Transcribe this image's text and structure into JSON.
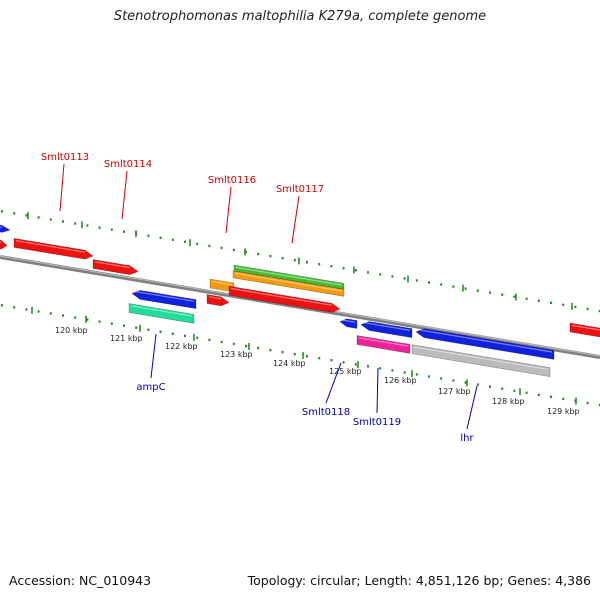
{
  "title": "Stenotrophomonas maltophilia K279a, complete genome",
  "footer": {
    "accession": "Accession: NC_010943",
    "summary": "Topology: circular; Length: 4,851,126 bp; Genes: 4,386"
  },
  "colors": {
    "backbone": "#808080",
    "tick": "#2a8a2a",
    "forward_label": "#cc0000",
    "reverse_label": "#0000aa",
    "red": "#ee1111",
    "orange": "#f49a10",
    "green": "#44bb33",
    "blue": "#1122dd",
    "teal": "#22dd99",
    "magenta": "#ee2299",
    "gray": "#bbbbbb"
  },
  "scale": {
    "unit": "kbp",
    "labels": [
      "120 kbp",
      "121 kbp",
      "122 kbp",
      "123 kbp",
      "124 kbp",
      "125 kbp",
      "126 kbp",
      "127 kbp",
      "128 kbp",
      "129 kbp"
    ]
  },
  "gene_labels": {
    "forward": [
      "Smlt0113",
      "Smlt0114",
      "Smlt0116",
      "Smlt0117"
    ],
    "reverse": [
      "ampC",
      "Smlt0118",
      "Smlt0119",
      "lhr"
    ]
  },
  "features": [
    {
      "color": "blue"
    },
    {
      "color": "red"
    },
    {
      "color": "red"
    },
    {
      "color": "red"
    },
    {
      "color": "orange"
    },
    {
      "color": "green"
    },
    {
      "color": "orange"
    },
    {
      "color": "red"
    },
    {
      "color": "red"
    },
    {
      "color": "red"
    },
    {
      "color": "blue"
    },
    {
      "color": "teal"
    },
    {
      "color": "blue"
    },
    {
      "color": "blue"
    },
    {
      "color": "magenta"
    },
    {
      "color": "blue"
    },
    {
      "color": "gray"
    }
  ]
}
